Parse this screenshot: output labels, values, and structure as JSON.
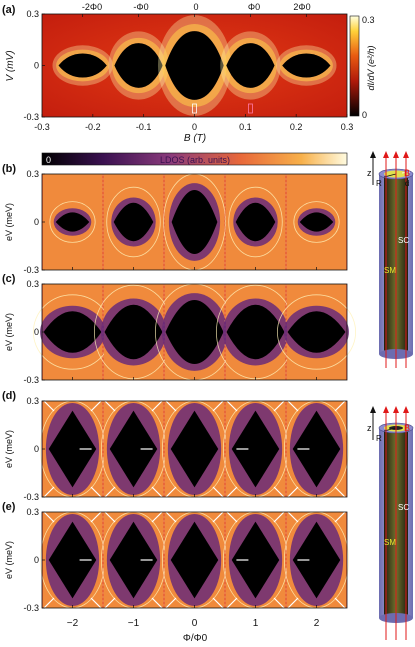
{
  "figure": {
    "panel_labels": [
      "(a)",
      "(b)",
      "(c)",
      "(d)",
      "(e)"
    ]
  },
  "panel_a": {
    "top_ticks": [
      "-2Φ0",
      "-Φ0",
      "0",
      "Φ0",
      "2Φ0"
    ],
    "ylabel": "V (mV)",
    "xlabel": "B (T)",
    "colorbar_label": "dI/dV (e²/h)",
    "colorbar_ticks": [
      "0.3",
      "0"
    ]
  },
  "lobe_colorbar": {
    "label": "LDOS (arb. units)",
    "min_label": "0",
    "colors": [
      "#000000",
      "#3a1150",
      "#8a3b7c",
      "#e8683a",
      "#f7b04a",
      "#fffbe0"
    ]
  },
  "panels_bcde": {
    "ylabel": "eV (meV)",
    "xlabel": "Φ/Φ0",
    "xticks": [
      "-2",
      "-1",
      "0",
      "1",
      "2"
    ]
  },
  "schematic_top": {
    "labels": [
      "z",
      "B",
      "R",
      "d",
      "SC",
      "SM"
    ]
  },
  "schematic_bottom": {
    "labels": [
      "z",
      "B",
      "R",
      "SC",
      "SM"
    ]
  },
  "chart_data": [
    {
      "panel": "a",
      "type": "heatmap",
      "xlabel": "B (T)",
      "ylabel": "V (mV)",
      "xlim": [
        -0.3,
        0.3
      ],
      "ylim": [
        -0.3,
        0.3
      ],
      "xticks": [
        -0.3,
        -0.2,
        -0.1,
        0,
        0.1,
        0.2,
        0.3
      ],
      "yticks": [
        -0.3,
        0,
        0.3
      ],
      "lobe_centers_B": [
        -0.22,
        -0.11,
        0,
        0.11,
        0.22
      ],
      "gap_halfwidth_V": [
        0.07,
        0.13,
        0.2,
        0.13,
        0.07
      ],
      "colorbar_range": [
        0,
        0.3
      ],
      "colors": {
        "background": "#d52a12",
        "edge": "#fff7b0",
        "gap": "#000000"
      }
    },
    {
      "panel": "b",
      "type": "heatmap",
      "xlabel": "Φ/Φ0",
      "ylabel": "eV (meV)",
      "xlim": [
        -2.5,
        2.5
      ],
      "ylim": [
        -0.3,
        0.3
      ],
      "xticks": [
        -2,
        -1,
        0,
        1,
        2
      ],
      "yticks": [
        -0.3,
        0,
        0.3
      ],
      "gap_halfwidth": [
        0.06,
        0.12,
        0.2,
        0.12,
        0.06
      ]
    },
    {
      "panel": "c",
      "type": "heatmap",
      "xlabel": "Φ/Φ0",
      "ylabel": "eV (meV)",
      "xlim": [
        -2.5,
        2.5
      ],
      "ylim": [
        -0.3,
        0.3
      ],
      "xticks": [
        -2,
        -1,
        0,
        1,
        2
      ],
      "yticks": [
        -0.3,
        0,
        0.3
      ],
      "gap_halfwidth": [
        0.13,
        0.17,
        0.2,
        0.17,
        0.13
      ]
    },
    {
      "panel": "d",
      "type": "heatmap",
      "xlabel": "Φ/Φ0",
      "ylabel": "eV (meV)",
      "xlim": [
        -2.5,
        2.5
      ],
      "ylim": [
        -0.3,
        0.3
      ],
      "xticks": [
        -2,
        -1,
        0,
        1,
        2
      ],
      "yticks": [
        -0.3,
        0,
        0.3
      ],
      "gap_halfwidth": [
        0.24,
        0.24,
        0.24,
        0.24,
        0.24
      ]
    },
    {
      "panel": "e",
      "type": "heatmap",
      "xlabel": "Φ/Φ0",
      "ylabel": "eV (meV)",
      "xlim": [
        -2.5,
        2.5
      ],
      "ylim": [
        -0.3,
        0.3
      ],
      "xticks": [
        -2,
        -1,
        0,
        1,
        2
      ],
      "yticks": [
        -0.3,
        0,
        0.3
      ],
      "gap_halfwidth": [
        0.24,
        0.24,
        0.24,
        0.24,
        0.24
      ]
    }
  ]
}
